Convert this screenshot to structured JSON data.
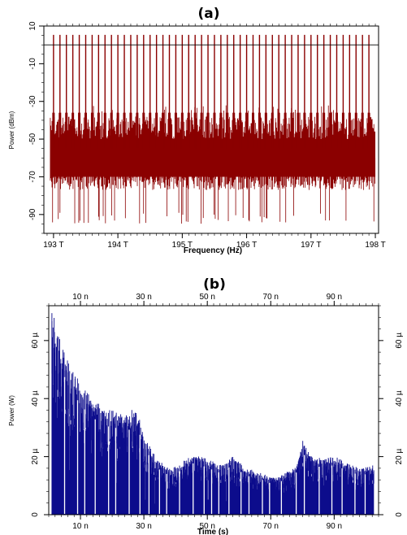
{
  "chart_data": [
    {
      "type": "line",
      "panel_label": "(a)",
      "xlabel": "Frequency (Hz)",
      "ylabel": "Power (dBm)",
      "x_unit_suffix": "T",
      "xlim": [
        192.85,
        198.05
      ],
      "ylim": [
        -100,
        10
      ],
      "x_ticks": [
        193,
        194,
        195,
        196,
        197,
        198
      ],
      "x_tick_labels": [
        "193 T",
        "194 T",
        "195 T",
        "196 T",
        "197 T",
        "198 T"
      ],
      "y_ticks": [
        10,
        -10,
        -30,
        -50,
        -70,
        -90
      ],
      "y_tick_labels": [
        "10",
        "-10",
        "-30",
        "-50",
        "-70",
        "-90"
      ],
      "reference_line_dBm": 0,
      "color": "#8b0000",
      "series": [
        {
          "role": "carriers",
          "count": 50,
          "x_start": 193.0,
          "x_end": 197.9,
          "peak_dBm": 5.3,
          "shoulder_dBm": -36
        },
        {
          "role": "noise",
          "x_start": 192.95,
          "x_end": 198.0,
          "floor_dBm": -95,
          "band_top_dBm": -44,
          "band_bottom_dBm": -75
        }
      ],
      "grid": false
    },
    {
      "type": "bar",
      "panel_label": "(b)",
      "xlabel": "Time (s)",
      "ylabel": "Power (W)",
      "xlim": [
        0,
        104
      ],
      "ylim": [
        0,
        72
      ],
      "x_ticks": [
        10,
        30,
        50,
        70,
        90
      ],
      "x_tick_labels": [
        "10 n",
        "30 n",
        "50 n",
        "70 n",
        "90 n"
      ],
      "y_ticks": [
        0,
        20,
        40,
        60
      ],
      "y_tick_labels": [
        "0",
        "20 µ",
        "40 µ",
        "60 µ"
      ],
      "color": "#0c0c8c",
      "envelope": {
        "x": [
          1,
          2,
          4,
          7,
          10,
          14,
          18,
          22,
          25,
          27,
          29,
          31,
          34,
          38,
          42,
          46,
          50,
          54,
          58,
          62,
          66,
          70,
          74,
          78,
          80,
          82,
          86,
          90,
          94,
          98,
          102
        ],
        "y": [
          68,
          62,
          55,
          48,
          42,
          37,
          34,
          33,
          32,
          35,
          30,
          24,
          18,
          15,
          17,
          20,
          18,
          16,
          19,
          15,
          14,
          12,
          13,
          16,
          24,
          20,
          18,
          19,
          17,
          15,
          16
        ]
      },
      "grid": false
    }
  ]
}
